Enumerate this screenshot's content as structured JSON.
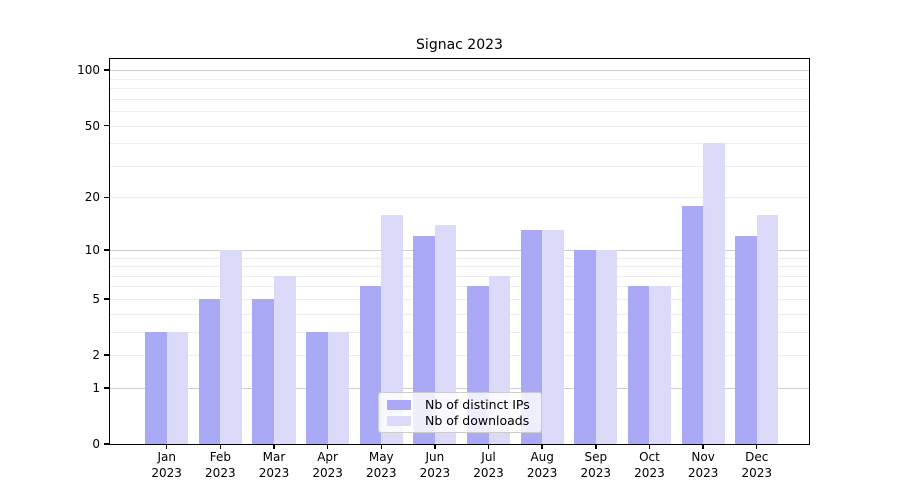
{
  "chart_data": {
    "type": "bar",
    "title": "Signac 2023",
    "categories": [
      "Jan",
      "Feb",
      "Mar",
      "Apr",
      "May",
      "Jun",
      "Jul",
      "Aug",
      "Sep",
      "Oct",
      "Nov",
      "Dec"
    ],
    "category_year": "2023",
    "series": [
      {
        "name": "Nb of distinct IPs",
        "color": "#a9a9f6",
        "values": [
          3,
          5,
          5,
          3,
          6,
          12,
          6,
          13,
          10,
          6,
          18,
          12
        ]
      },
      {
        "name": "Nb of downloads",
        "color": "#dbdbf9",
        "values": [
          3,
          10,
          7,
          3,
          16,
          14,
          7,
          13,
          10,
          6,
          40,
          16
        ]
      }
    ],
    "yscale": "log1p",
    "ylim": [
      0,
      115
    ],
    "y_tick_labels": [
      0,
      1,
      2,
      5,
      10,
      20,
      50,
      100
    ],
    "y_major_gridlines": [
      1,
      10,
      100
    ],
    "y_minor_gridlines": [
      2,
      3,
      4,
      5,
      6,
      7,
      8,
      9,
      20,
      30,
      40,
      50,
      60,
      70,
      80,
      90
    ],
    "legend_position": "lower center",
    "colors": {
      "major_grid": "#cccccc",
      "minor_grid": "#ededed",
      "axis": "#000000",
      "background": "#ffffff"
    }
  }
}
